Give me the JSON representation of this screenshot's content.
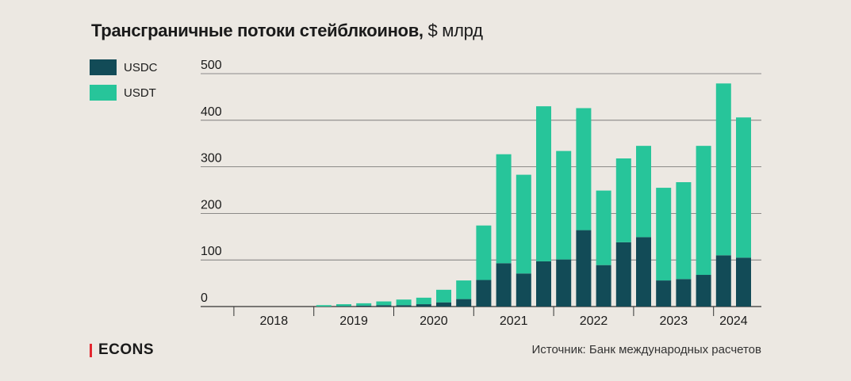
{
  "title": {
    "bold": "Трансграничные потоки стейблкоинов,",
    "unit": " $ млрд"
  },
  "logo": "ECONS",
  "source": "Источник: Банк международных расчетов",
  "colors": {
    "background": "#ece8e2",
    "usdc": "#124b57",
    "usdt": "#27c59a",
    "grid": "#555555",
    "logo_accent": "#e3262f"
  },
  "chart_data": {
    "type": "bar",
    "stacked": true,
    "legend_position": "top-left",
    "grid": "horizontal",
    "ylim": [
      0,
      500
    ],
    "yticks": [
      0,
      100,
      200,
      300,
      400,
      500
    ],
    "year_labels": [
      "2018",
      "2019",
      "2020",
      "2021",
      "2022",
      "2023",
      "2024"
    ],
    "year_bar_counts": [
      4,
      4,
      4,
      4,
      4,
      4,
      2
    ],
    "categories": [
      "2018 Q1",
      "2018 Q2",
      "2018 Q3",
      "2018 Q4",
      "2019 Q1",
      "2019 Q2",
      "2019 Q3",
      "2019 Q4",
      "2020 Q1",
      "2020 Q2",
      "2020 Q3",
      "2020 Q4",
      "2021 Q1",
      "2021 Q2",
      "2021 Q3",
      "2021 Q4",
      "2022 Q1",
      "2022 Q2",
      "2022 Q3",
      "2022 Q4",
      "2023 Q1",
      "2023 Q2",
      "2023 Q3",
      "2023 Q4",
      "2024 Q1",
      "2024 Q2"
    ],
    "series": [
      {
        "name": "USDC",
        "color": "#124b57",
        "values": [
          0,
          0,
          0,
          0,
          0,
          1,
          2,
          3,
          3,
          5,
          9,
          16,
          57,
          93,
          71,
          97,
          101,
          164,
          89,
          138,
          149,
          56,
          59,
          68,
          110,
          105
        ]
      },
      {
        "name": "USDT",
        "color": "#27c59a",
        "values": [
          0,
          0,
          0,
          0,
          3,
          4,
          5,
          8,
          12,
          14,
          27,
          40,
          117,
          234,
          212,
          333,
          233,
          262,
          160,
          180,
          196,
          199,
          208,
          277,
          369,
          301
        ]
      }
    ]
  }
}
